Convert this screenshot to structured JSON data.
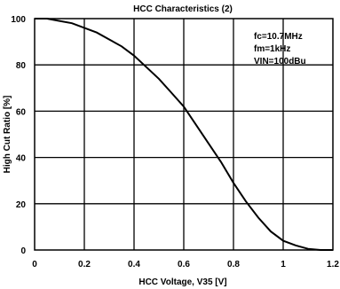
{
  "chart_data": {
    "type": "line",
    "title": "HCC Characteristics (2)",
    "xlabel": "HCC Voltage, V35 [V]",
    "ylabel": "High Cut Ratio [%]",
    "xlim": [
      0,
      1.2
    ],
    "ylim": [
      0,
      100
    ],
    "xticks": [
      "0",
      "0.2",
      "0.4",
      "0.6",
      "0.8",
      "1",
      "1.2"
    ],
    "yticks": [
      "0",
      "20",
      "40",
      "60",
      "80",
      "100"
    ],
    "grid": true,
    "annotations": [
      "fc=10.7MHz",
      "fm=1kHz",
      "VIN=100dBu"
    ],
    "series": [
      {
        "x": [
          0,
          0.05,
          0.1,
          0.15,
          0.2,
          0.25,
          0.3,
          0.35,
          0.4,
          0.45,
          0.5,
          0.55,
          0.6,
          0.65,
          0.7,
          0.75,
          0.8,
          0.85,
          0.9,
          0.95,
          1.0,
          1.05,
          1.1,
          1.15,
          1.2
        ],
        "y": [
          100,
          100,
          99,
          98,
          96,
          94,
          91,
          88,
          84,
          79,
          74,
          68,
          62,
          54,
          46,
          38,
          29,
          21,
          14,
          8,
          4,
          2,
          0.5,
          0,
          0
        ]
      }
    ]
  }
}
